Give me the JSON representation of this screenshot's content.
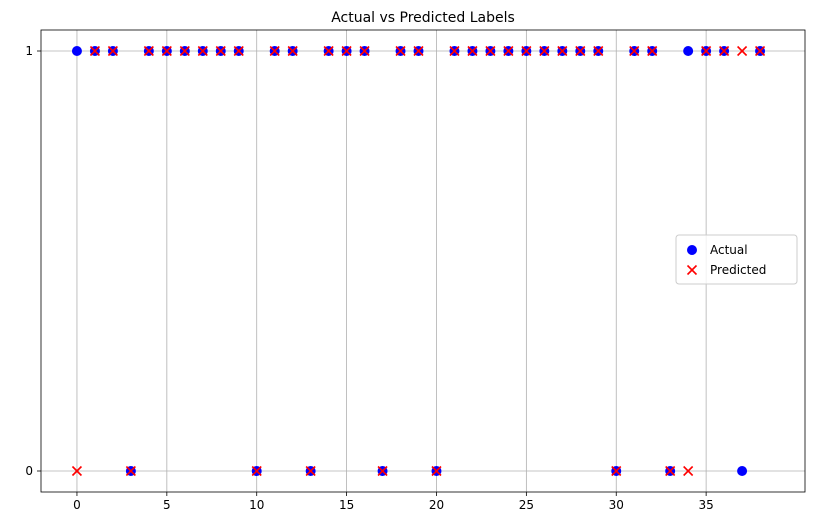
{
  "chart_data": {
    "type": "scatter",
    "title": "Actual vs Predicted Labels",
    "xlabel": "",
    "ylabel": "",
    "xlim": [
      -2,
      40.5
    ],
    "ylim": [
      -0.05,
      1.05
    ],
    "xticks": [
      0,
      5,
      10,
      15,
      20,
      25,
      30,
      35
    ],
    "yticks": [
      0,
      1
    ],
    "grid": true,
    "legend_position": "center-right",
    "series": [
      {
        "name": "Actual",
        "marker": "circle",
        "color": "#0000ff",
        "x": [
          0,
          1,
          2,
          3,
          4,
          5,
          6,
          7,
          8,
          9,
          10,
          11,
          12,
          13,
          14,
          15,
          16,
          17,
          18,
          19,
          20,
          21,
          22,
          23,
          24,
          25,
          26,
          27,
          28,
          29,
          30,
          31,
          32,
          33,
          34,
          35,
          36,
          37,
          38
        ],
        "values": [
          1,
          1,
          1,
          0,
          1,
          1,
          1,
          1,
          1,
          1,
          0,
          1,
          1,
          0,
          1,
          1,
          1,
          0,
          1,
          1,
          0,
          1,
          1,
          1,
          1,
          1,
          1,
          1,
          1,
          1,
          0,
          1,
          1,
          0,
          1,
          1,
          1,
          0,
          1
        ]
      },
      {
        "name": "Predicted",
        "marker": "x",
        "color": "#ff0000",
        "x": [
          0,
          1,
          2,
          3,
          4,
          5,
          6,
          7,
          8,
          9,
          10,
          11,
          12,
          13,
          14,
          15,
          16,
          17,
          18,
          19,
          20,
          21,
          22,
          23,
          24,
          25,
          26,
          27,
          28,
          29,
          30,
          31,
          32,
          33,
          34,
          35,
          36,
          37,
          38
        ],
        "values": [
          0,
          1,
          1,
          0,
          1,
          1,
          1,
          1,
          1,
          1,
          0,
          1,
          1,
          0,
          1,
          1,
          1,
          0,
          1,
          1,
          0,
          1,
          1,
          1,
          1,
          1,
          1,
          1,
          1,
          1,
          0,
          1,
          1,
          0,
          0,
          1,
          1,
          1,
          1
        ]
      }
    ]
  }
}
